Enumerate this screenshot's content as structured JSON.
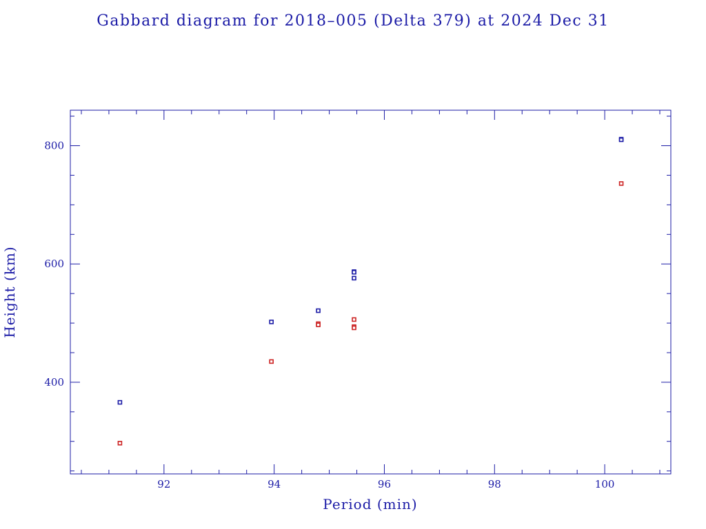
{
  "chart_data": {
    "type": "scatter",
    "title": "Gabbard diagram for 2018–005 (Delta 379) at 2024 Dec 31",
    "xlabel": "Period (min)",
    "ylabel": "Height (km)",
    "xlim": [
      90.3,
      101.2
    ],
    "ylim": [
      245,
      860
    ],
    "x_ticks": [
      92,
      94,
      96,
      98,
      100
    ],
    "y_ticks": [
      400,
      600,
      800
    ],
    "x_minor_step": 0.5,
    "y_minor_step": 50,
    "grid": false,
    "colors": {
      "axes": "#1a1aa6",
      "apogee": "#1a1aa6",
      "perigee": "#cc2222"
    },
    "series": [
      {
        "role": "apogee",
        "points": [
          [
            91.2,
            366
          ],
          [
            93.95,
            502
          ],
          [
            94.8,
            521
          ],
          [
            95.45,
            587
          ],
          [
            95.45,
            586
          ],
          [
            95.45,
            576
          ],
          [
            100.3,
            811
          ],
          [
            100.3,
            810
          ]
        ]
      },
      {
        "role": "perigee",
        "points": [
          [
            91.2,
            297
          ],
          [
            93.95,
            435
          ],
          [
            94.8,
            499
          ],
          [
            94.8,
            497
          ],
          [
            95.45,
            506
          ],
          [
            95.45,
            494
          ],
          [
            95.45,
            492
          ],
          [
            100.3,
            736
          ]
        ]
      }
    ]
  }
}
